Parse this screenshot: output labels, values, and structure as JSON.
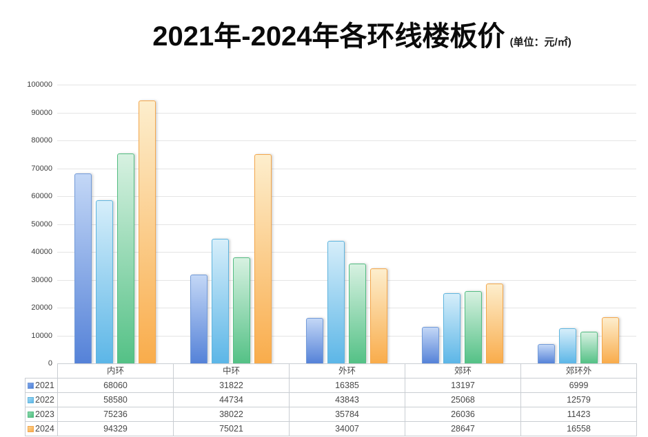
{
  "title": {
    "text": "2021年-2024年各环线楼板价",
    "unit": "(单位：元/㎡)"
  },
  "chart_data": {
    "type": "bar",
    "title": "2021年-2024年各环线楼板价",
    "unit_label": "单位：元/㎡",
    "categories": [
      "内环",
      "中环",
      "外环",
      "郊环",
      "郊环外"
    ],
    "series": [
      {
        "name": "2021",
        "values": [
          68060,
          31822,
          16385,
          13197,
          6999
        ],
        "swatch": "#4f81d9",
        "swatch_light": "#7da4e8",
        "fill_top": "#c3d7f6",
        "fill_bottom": "#5582d8",
        "border": "#729ad8"
      },
      {
        "name": "2022",
        "values": [
          58580,
          44734,
          43843,
          25068,
          12579
        ],
        "swatch": "#5fb8e8",
        "swatch_light": "#9ed7f3",
        "fill_top": "#d6eefa",
        "fill_bottom": "#5cb6e7",
        "border": "#5eb4de"
      },
      {
        "name": "2023",
        "values": [
          75236,
          38022,
          35784,
          26036,
          11423
        ],
        "swatch": "#4fbe7f",
        "swatch_light": "#90d9b0",
        "fill_top": "#d7f1e1",
        "fill_bottom": "#54c186",
        "border": "#52bc81"
      },
      {
        "name": "2024",
        "values": [
          94329,
          75021,
          34007,
          28647,
          16558
        ],
        "swatch": "#f9ad4d",
        "swatch_light": "#fcd391",
        "fill_top": "#fdeecd",
        "fill_bottom": "#f9ac4b",
        "border": "#f3a64b"
      }
    ],
    "xlabel": "",
    "ylabel": "",
    "ylim": [
      0,
      100000
    ],
    "ytick_step": 10000,
    "yticks": [
      0,
      10000,
      20000,
      30000,
      40000,
      50000,
      60000,
      70000,
      80000,
      90000,
      100000
    ],
    "grid": true,
    "legend_position": "table-left-column"
  }
}
